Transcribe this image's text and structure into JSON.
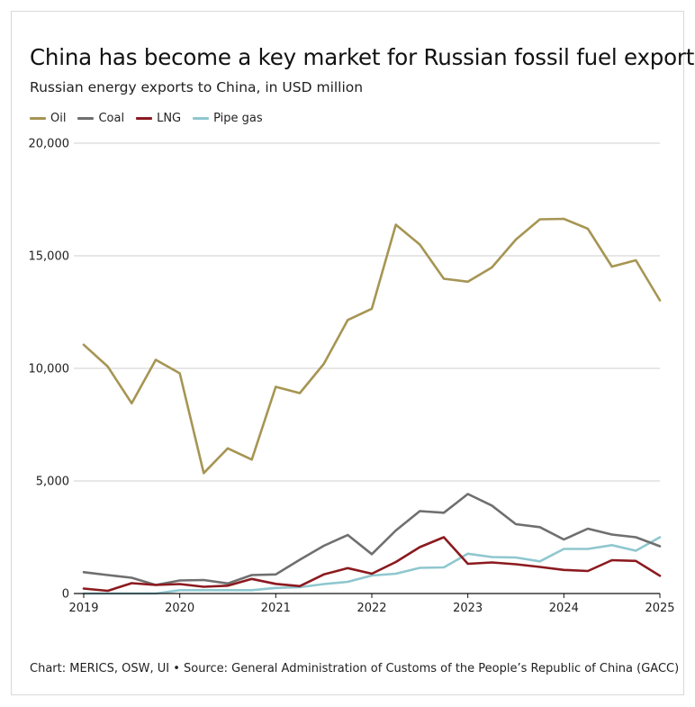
{
  "chart_data": {
    "type": "line",
    "title": "China has become a key market for Russian fossil fuel exports",
    "subtitle": "Russian energy exports to China, in USD million",
    "xlabel": "",
    "ylabel": "",
    "x_ticks": [
      "2019",
      "2020",
      "2021",
      "2022",
      "2023",
      "2024",
      "2025"
    ],
    "y_ticks": [
      "0",
      "5,000",
      "10,000",
      "15,000",
      "20,000"
    ],
    "ylim": [
      0,
      20000
    ],
    "xlim": [
      2019,
      2025
    ],
    "grid": true,
    "legend_position": "top-left",
    "x": [
      2019.0,
      2019.25,
      2019.5,
      2019.75,
      2020.0,
      2020.25,
      2020.5,
      2020.75,
      2021.0,
      2021.25,
      2021.5,
      2021.75,
      2022.0,
      2022.25,
      2022.5,
      2022.75,
      2023.0,
      2023.25,
      2023.5,
      2023.75,
      2024.0,
      2024.25,
      2024.5,
      2024.75,
      2025.0
    ],
    "series": [
      {
        "name": "Oil",
        "color": "#a69553",
        "values": [
          11050,
          10080,
          8450,
          10380,
          9780,
          5350,
          6450,
          5950,
          9180,
          8900,
          10200,
          12150,
          12650,
          16380,
          15500,
          13980,
          13850,
          14480,
          15720,
          16620,
          16640,
          16200,
          14520,
          14800,
          13020
        ]
      },
      {
        "name": "Coal",
        "color": "#6f6f6f",
        "values": [
          950,
          820,
          700,
          380,
          580,
          600,
          450,
          820,
          850,
          1500,
          2120,
          2600,
          1750,
          2800,
          3660,
          3590,
          4420,
          3910,
          3080,
          2950,
          2400,
          2880,
          2620,
          2500,
          2100
        ]
      },
      {
        "name": "LNG",
        "color": "#8b1a1f",
        "values": [
          220,
          120,
          460,
          380,
          420,
          300,
          350,
          650,
          430,
          330,
          850,
          1130,
          880,
          1400,
          2060,
          2500,
          1320,
          1380,
          1300,
          1180,
          1050,
          1000,
          1480,
          1450,
          790
        ]
      },
      {
        "name": "Pipe gas",
        "color": "#8fc7cf",
        "values": [
          0,
          0,
          0,
          0,
          150,
          150,
          150,
          150,
          250,
          280,
          420,
          520,
          800,
          880,
          1140,
          1160,
          1770,
          1620,
          1600,
          1430,
          1980,
          1980,
          2150,
          1900,
          2500
        ]
      }
    ]
  },
  "footer": {
    "source": "Chart: MERICS, OSW, UI • Source: General Administration of Customs of the People’s Republic of China (GACC)"
  }
}
